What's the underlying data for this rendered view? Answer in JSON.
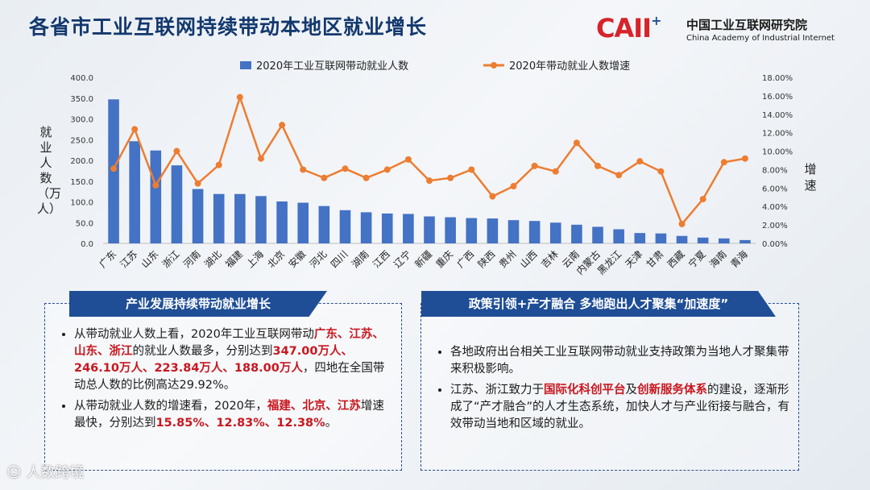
{
  "title": "各省市工业互联网持续带动本地区就业增长",
  "logo": {
    "mark": "CAII",
    "plus": "+",
    "name_cn": "中国工业互联网研究院",
    "name_en": "China Academy of Industrial Internet"
  },
  "chart_data": {
    "type": "bar",
    "categories": [
      "广东",
      "江苏",
      "山东",
      "浙江",
      "河南",
      "湖北",
      "福建",
      "上海",
      "北京",
      "安徽",
      "河北",
      "四川",
      "湖南",
      "江西",
      "辽宁",
      "新疆",
      "重庆",
      "广西",
      "陕西",
      "贵州",
      "山西",
      "吉林",
      "云南",
      "内蒙古",
      "黑龙江",
      "天津",
      "甘肃",
      "西藏",
      "宁夏",
      "海南",
      "青海"
    ],
    "series": [
      {
        "name": "2020年工业互联网带动就业人数",
        "type": "bar",
        "axis": "left",
        "color": "#4472c4",
        "values": [
          347.0,
          246.1,
          223.84,
          188.0,
          131,
          119,
          119,
          114,
          101,
          98,
          90,
          80,
          75,
          72,
          71,
          65,
          63,
          61,
          60,
          56,
          54,
          50,
          45,
          40,
          34,
          25,
          24,
          18,
          14,
          12,
          8
        ]
      },
      {
        "name": "2020年带动就业人数增速",
        "type": "line",
        "axis": "right",
        "color": "#ed7d31",
        "values": [
          8.1,
          12.38,
          6.3,
          10.0,
          6.5,
          8.5,
          15.85,
          9.2,
          12.83,
          8.0,
          7.1,
          8.1,
          7.1,
          8.0,
          9.1,
          6.8,
          7.1,
          8.0,
          5.1,
          6.2,
          8.4,
          7.8,
          10.9,
          8.4,
          7.4,
          8.9,
          7.8,
          2.1,
          4.8,
          8.8,
          9.2
        ]
      }
    ],
    "y_left": {
      "label": "就业人数（万人）",
      "ylim": [
        0,
        400
      ],
      "ticks": [
        "0.0",
        "50.0",
        "100.0",
        "150.0",
        "200.0",
        "250.0",
        "300.0",
        "350.0",
        "400.0"
      ]
    },
    "y_right": {
      "label": "增速",
      "ylim": [
        0,
        18
      ],
      "ticks": [
        "0.00%",
        "2.00%",
        "4.00%",
        "6.00%",
        "8.00%",
        "10.00%",
        "12.00%",
        "14.00%",
        "16.00%",
        "18.00%"
      ]
    },
    "legend_position": "top-center",
    "grid": false
  },
  "panel_left": {
    "title": "产业发展持续带动就业增长",
    "bullets": [
      [
        {
          "t": "从带动就业人数上看，2020年工业互联网带动"
        },
        {
          "t": "广东、江苏、山东、浙江",
          "hl": true
        },
        {
          "t": "的就业人数最多，分别达到"
        },
        {
          "t": "347.00万人、246.10万人、223.84万人、188.00万人",
          "hl": true
        },
        {
          "t": "，四地在全国带动总人数的比例高达29.92%。"
        }
      ],
      [
        {
          "t": "从带动就业人数的增速看，2020年，"
        },
        {
          "t": "福建、北京、江苏",
          "hl": true
        },
        {
          "t": "增速最快，分别达到"
        },
        {
          "t": "15.85%、12.83%、12.38%",
          "hl": true
        },
        {
          "t": "。"
        }
      ]
    ]
  },
  "panel_right": {
    "title": "政策引领+产才融合  多地跑出人才聚集“加速度”",
    "bullets": [
      [
        {
          "t": "各地政府出台相关工业互联网带动就业支持政策为当地人才聚集带来积极影响。"
        }
      ],
      [
        {
          "t": "江苏、浙江致力于"
        },
        {
          "t": "国际化科创平台",
          "hl": true
        },
        {
          "t": "及"
        },
        {
          "t": "创新服务体系",
          "hl": true
        },
        {
          "t": "的建设，逐渐形成了“产才融合”的人才生态系统，加快人才与产业衔接与融合，有效带动当地和区域的就业。"
        }
      ]
    ]
  },
  "watermark": "人数跨境"
}
